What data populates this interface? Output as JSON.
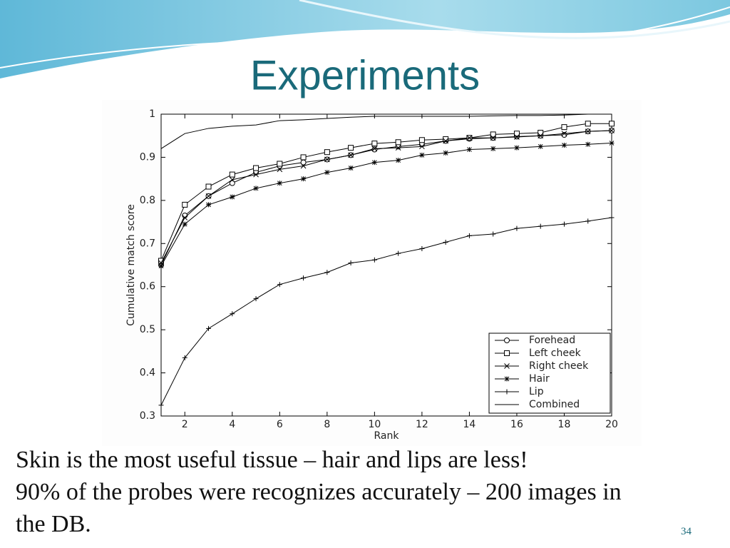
{
  "slide": {
    "title": "Experiments",
    "body": [
      "Skin is the most useful tissue – hair and lips are less!",
      "90% of the probes were recognizes accurately – 200 images in the DB."
    ],
    "page_number": "34"
  },
  "chart_data": {
    "type": "line",
    "xlabel": "Rank",
    "ylabel": "Cumulative match score",
    "x": [
      1,
      2,
      3,
      4,
      5,
      6,
      7,
      8,
      9,
      10,
      11,
      12,
      13,
      14,
      15,
      16,
      17,
      18,
      19,
      20
    ],
    "xlim": [
      1,
      20
    ],
    "xticks": [
      2,
      4,
      6,
      8,
      10,
      12,
      14,
      16,
      18,
      20
    ],
    "ylim": [
      0.3,
      1
    ],
    "yticks": [
      0.3,
      0.4,
      0.5,
      0.6,
      0.7,
      0.8,
      0.9,
      1
    ],
    "legend": "lower right",
    "series": [
      {
        "name": "Forehead",
        "marker": "circle",
        "color": "#000000",
        "values": [
          0.65,
          0.765,
          0.81,
          0.84,
          0.865,
          0.88,
          0.888,
          0.895,
          0.905,
          0.918,
          0.925,
          0.93,
          0.938,
          0.943,
          0.945,
          0.948,
          0.95,
          0.952,
          0.96,
          0.962
        ]
      },
      {
        "name": "Left cheek",
        "marker": "square",
        "color": "#000000",
        "values": [
          0.66,
          0.79,
          0.832,
          0.86,
          0.875,
          0.885,
          0.9,
          0.912,
          0.922,
          0.932,
          0.935,
          0.94,
          0.942,
          0.945,
          0.953,
          0.955,
          0.957,
          0.97,
          0.978,
          0.978
        ]
      },
      {
        "name": "Right cheek",
        "marker": "x",
        "color": "#000000",
        "values": [
          0.655,
          0.76,
          0.81,
          0.848,
          0.86,
          0.872,
          0.88,
          0.895,
          0.905,
          0.92,
          0.922,
          0.925,
          0.938,
          0.945,
          0.945,
          0.947,
          0.95,
          0.955,
          0.96,
          0.962
        ]
      },
      {
        "name": "Hair",
        "marker": "asterisk",
        "color": "#000000",
        "values": [
          0.648,
          0.745,
          0.79,
          0.808,
          0.828,
          0.84,
          0.85,
          0.865,
          0.875,
          0.888,
          0.893,
          0.905,
          0.91,
          0.918,
          0.92,
          0.922,
          0.925,
          0.928,
          0.93,
          0.933
        ]
      },
      {
        "name": "Lip",
        "marker": "plus",
        "color": "#000000",
        "values": [
          0.325,
          0.435,
          0.503,
          0.537,
          0.572,
          0.605,
          0.62,
          0.633,
          0.655,
          0.662,
          0.677,
          0.688,
          0.703,
          0.718,
          0.722,
          0.735,
          0.74,
          0.745,
          0.752,
          0.76
        ]
      },
      {
        "name": "Combined",
        "marker": "none",
        "color": "#000000",
        "values": [
          0.92,
          0.955,
          0.967,
          0.972,
          0.975,
          0.985,
          0.987,
          0.99,
          0.993,
          0.995,
          0.995,
          0.995,
          0.995,
          0.995,
          0.996,
          0.997,
          0.997,
          0.998,
          1,
          1
        ]
      }
    ]
  }
}
